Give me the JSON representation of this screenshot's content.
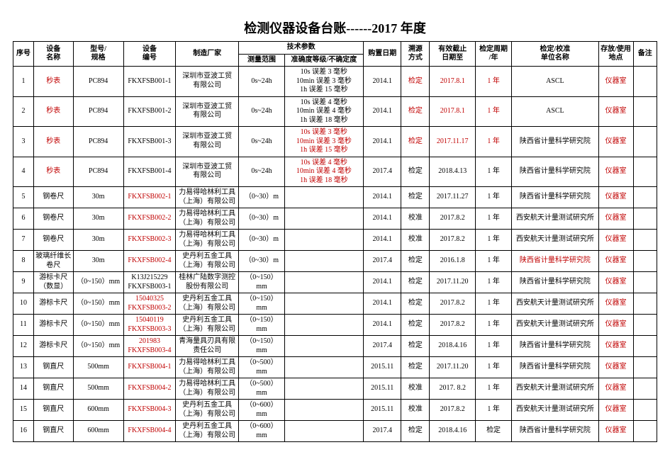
{
  "title": "检测仪器设备台账------2017 年度",
  "columns": {
    "seq": "序号",
    "name": "设备\n名称",
    "model": "型号/\n规格",
    "code": "设备\n编号",
    "maker": "制造厂家",
    "tech_group": "技术参数",
    "range": "测量范围",
    "accuracy": "准确度等级/不确定度",
    "pdate": "购置日期",
    "method": "溯源\n方式",
    "valid": "有效截止\n日期至",
    "cycle": "检定周期\n/年",
    "org": "检定/校准\n单位名称",
    "loc": "存放/使用\n地点",
    "remark": "备注"
  },
  "rows": [
    {
      "seq": "1",
      "name": "秒表",
      "name_red": true,
      "model": "PC894",
      "code": "FKXFSB001-1",
      "maker": "深圳市亚波工贸\n有限公司",
      "range": "0s~24h",
      "acc": "10s 误差 3 毫秒\n10min 误差 3 毫秒\n1h 误差 15 毫秒",
      "pdate": "2014.1",
      "method": "检定",
      "method_red": true,
      "valid": "2017.8.1",
      "valid_red": true,
      "cycle": "1 年",
      "cycle_red": true,
      "org": "ASCL",
      "loc": "仪器室",
      "loc_red": true,
      "remark": ""
    },
    {
      "seq": "2",
      "name": "秒表",
      "name_red": true,
      "model": "PC894",
      "code": "FKXFSB001-2",
      "maker": "深圳市亚波工贸\n有限公司",
      "range": "0s~24h",
      "acc": "10s 误差 4 毫秒\n10min 误差 4 毫秒\n1h 误差 18 毫秒",
      "pdate": "2014.1",
      "method": "检定",
      "method_red": true,
      "valid": "2017.8.1",
      "valid_red": true,
      "cycle": "1 年",
      "cycle_red": true,
      "org": "ASCL",
      "loc": "仪器室",
      "loc_red": true,
      "remark": ""
    },
    {
      "seq": "3",
      "name": "秒表",
      "name_red": true,
      "model": "PC894",
      "code": "FKXFSB001-3",
      "maker": "深圳市亚波工贸\n有限公司",
      "range": "0s~24h",
      "acc": "10s 误差 3 毫秒\n10min 误差 3 毫秒\n1h 误差 15 毫秒",
      "acc_red": true,
      "pdate": "2014.1",
      "method": "检定",
      "method_red": true,
      "valid": "2017.11.17",
      "valid_red": true,
      "cycle": "1 年",
      "cycle_red": true,
      "org": "陕西省计量科学研究院",
      "loc": "仪器室",
      "loc_red": true,
      "remark": ""
    },
    {
      "seq": "4",
      "name": "秒表",
      "name_red": true,
      "model": "PC894",
      "code": "FKXFSB001-4",
      "maker": "深圳市亚波工贸\n有限公司",
      "range": "0s~24h",
      "acc": "10s 误差 4 毫秒\n10min 误差 4 毫秒\n1h 误差 18 毫秒",
      "acc_red": true,
      "pdate": "2017.4",
      "method": "检定",
      "valid": "2018.4.13",
      "cycle": "1 年",
      "org": "陕西省计量科学研究院",
      "loc": "仪器室",
      "loc_red": true,
      "remark": ""
    },
    {
      "seq": "5",
      "name": "钢卷尺",
      "model": "30m",
      "code": "FKXFSB002-1",
      "code_red": true,
      "maker": "力易得哈林利工具\n（上海）有限公司",
      "range": "（0~30）m",
      "acc": "",
      "pdate": "2014.1",
      "method": "检定",
      "valid": "2017.11.27",
      "cycle": "1 年",
      "org": "陕西省计量科学研究院",
      "loc": "仪器室",
      "loc_red": true,
      "remark": ""
    },
    {
      "seq": "6",
      "name": "钢卷尺",
      "model": "30m",
      "code": "FKXFSB002-2",
      "code_red": true,
      "maker": "力易得哈林利工具\n（上海）有限公司",
      "range": "（0~30）m",
      "acc": "",
      "pdate": "2014.1",
      "method": "校准",
      "valid": "2017.8.2",
      "cycle": "1 年",
      "org": "西安航天计量测试研究所",
      "loc": "仪器室",
      "loc_red": true,
      "remark": ""
    },
    {
      "seq": "7",
      "name": "钢卷尺",
      "model": "30m",
      "code": "FKXFSB002-3",
      "code_red": true,
      "maker": "力易得哈林利工具\n（上海）有限公司",
      "range": "（0~30）m",
      "acc": "",
      "pdate": "2014.1",
      "method": "校准",
      "valid": "2017.8.2",
      "cycle": "1 年",
      "org": "西安航天计量测试研究所",
      "loc": "仪器室",
      "loc_red": true,
      "remark": ""
    },
    {
      "seq": "8",
      "name": "玻璃纤维长\n卷尺",
      "model": "30m",
      "code": "FKXFSB002-4",
      "code_red": true,
      "maker": "史丹利五金工具\n（上海）有限公司",
      "range": "（0~30）m",
      "acc": "",
      "pdate": "2017.4",
      "method": "检定",
      "valid": "2016.1.8",
      "cycle": "1 年",
      "org": "陕西省计量科学研究院",
      "org_red": true,
      "loc": "仪器室",
      "loc_red": true,
      "remark": ""
    },
    {
      "seq": "9",
      "name": "游标卡尺\n（数显）",
      "model": "（0~150）mm",
      "code": "K13J215229\nFKXFSB003-1",
      "maker": "桂林广陆数字测控\n股份有限公司",
      "range": "（0~150）\nmm",
      "acc": "",
      "pdate": "2014.1",
      "method": "检定",
      "valid": "2017.11.20",
      "cycle": "1 年",
      "org": "陕西省计量科学研究院",
      "loc": "仪器室",
      "loc_red": true,
      "remark": ""
    },
    {
      "seq": "10",
      "name": "游标卡尺",
      "model": "（0~150）mm",
      "code": "15040325\nFKXFSB003-2",
      "code_red": true,
      "maker": "史丹利五金工具\n（上海）有限公司",
      "range": "（0~150）\nmm",
      "acc": "",
      "pdate": "2014.1",
      "method": "检定",
      "valid": "2017.8.2",
      "cycle": "1 年",
      "org": "西安航天计量测试研究所",
      "loc": "仪器室",
      "loc_red": true,
      "remark": ""
    },
    {
      "seq": "11",
      "name": "游标卡尺",
      "model": "（0~150）mm",
      "code": "15040119\nFKXFSB003-3",
      "code_red": true,
      "maker": "史丹利五金工具\n（上海）有限公司",
      "range": "（0~150）\nmm",
      "acc": "",
      "pdate": "2014.1",
      "method": "检定",
      "valid": "2017.8.2",
      "cycle": "1 年",
      "org": "西安航天计量测试研究所",
      "loc": "仪器室",
      "loc_red": true,
      "remark": ""
    },
    {
      "seq": "12",
      "name": "游标卡尺",
      "model": "（0~150）mm",
      "code": "201983\nFKXFSB003-4",
      "code_red": true,
      "maker": "青海量具刃具有限\n责任公司",
      "range": "（0~150）\nmm",
      "acc": "",
      "pdate": "2017.4",
      "method": "检定",
      "valid": "2018.4.16",
      "cycle": "1 年",
      "org": "陕西省计量科学研究院",
      "loc": "仪器室",
      "loc_red": true,
      "remark": ""
    },
    {
      "seq": "13",
      "name": "钢直尺",
      "model": "500mm",
      "code": "FKXFSB004-1",
      "code_red": true,
      "maker": "力易得哈林利工具\n（上海）有限公司",
      "range": "（0~500）\nmm",
      "acc": "",
      "pdate": "2015.11",
      "method": "检定",
      "valid": "2017.11.20",
      "cycle": "1 年",
      "org": "陕西省计量科学研究院",
      "loc": "仪器室",
      "loc_red": true,
      "remark": ""
    },
    {
      "seq": "14",
      "name": "钢直尺",
      "model": "500mm",
      "code": "FKXFSB004-2",
      "code_red": true,
      "maker": "力易得哈林利工具\n（上海）有限公司",
      "range": "（0~500）\nmm",
      "acc": "",
      "pdate": "2015.11",
      "method": "校准",
      "valid": "2017. 8.2",
      "cycle": "1 年",
      "org": "西安航天计量测试研究所",
      "loc": "仪器室",
      "loc_red": true,
      "remark": ""
    },
    {
      "seq": "15",
      "name": "钢直尺",
      "model": "600mm",
      "code": "FKXFSB004-3",
      "code_red": true,
      "maker": "史丹利五金工具\n（上海）有限公司",
      "range": "（0~600）\nmm",
      "acc": "",
      "pdate": "2015.11",
      "method": "校准",
      "valid": "2017.8.2",
      "cycle": "1 年",
      "org": "西安航天计量测试研究所",
      "loc": "仪器室",
      "loc_red": true,
      "remark": ""
    },
    {
      "seq": "16",
      "name": "钢直尺",
      "model": "600mm",
      "code": "FKXFSB004-4",
      "code_red": true,
      "maker": "史丹利五金工具\n（上海）有限公司",
      "range": "（0~600）\nmm",
      "acc": "",
      "pdate": "2017.4",
      "method": "检定",
      "valid": "2018.4.16",
      "cycle": "检定",
      "org": "陕西省计量科学研究院",
      "loc": "仪器室",
      "loc_red": true,
      "remark": ""
    }
  ]
}
